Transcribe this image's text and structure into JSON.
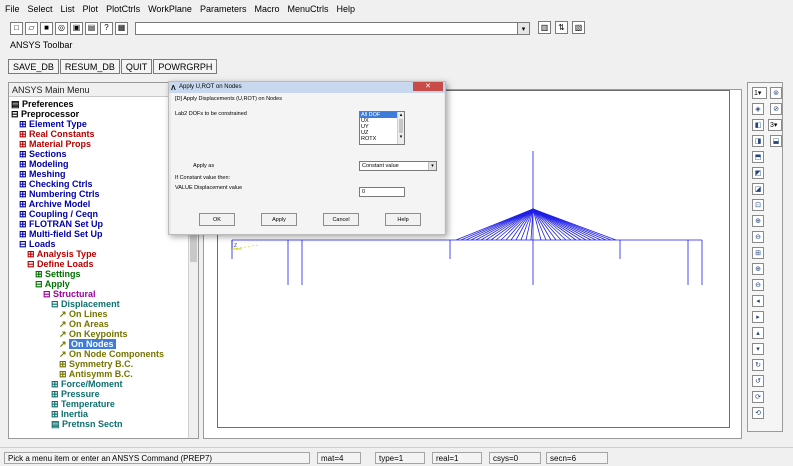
{
  "menubar": [
    "File",
    "Select",
    "List",
    "Plot",
    "PlotCtrls",
    "WorkPlane",
    "Parameters",
    "Macro",
    "MenuCtrls",
    "Help"
  ],
  "toolbar_label": "ANSYS Toolbar",
  "ansys_toolbar": [
    "SAVE_DB",
    "RESUM_DB",
    "QUIT",
    "POWRGRPH"
  ],
  "main_menu": {
    "title": "ANSYS Main Menu",
    "items": [
      {
        "label": "▤ Preferences",
        "color": "c-black",
        "indent": 0
      },
      {
        "label": "⊟ Preprocessor",
        "color": "c-black",
        "indent": 0
      },
      {
        "label": "⊞ Element Type",
        "color": "c-blue",
        "indent": 1
      },
      {
        "label": "⊞ Real Constants",
        "color": "c-red",
        "indent": 1
      },
      {
        "label": "⊞ Material Props",
        "color": "c-red",
        "indent": 1
      },
      {
        "label": "⊞ Sections",
        "color": "c-blue",
        "indent": 1
      },
      {
        "label": "⊞ Modeling",
        "color": "c-blue",
        "indent": 1
      },
      {
        "label": "⊞ Meshing",
        "color": "c-blue",
        "indent": 1
      },
      {
        "label": "⊞ Checking Ctrls",
        "color": "c-blue",
        "indent": 1
      },
      {
        "label": "⊞ Numbering Ctrls",
        "color": "c-blue",
        "indent": 1
      },
      {
        "label": "⊞ Archive Model",
        "color": "c-blue",
        "indent": 1
      },
      {
        "label": "⊞ Coupling / Ceqn",
        "color": "c-blue",
        "indent": 1
      },
      {
        "label": "⊞ FLOTRAN Set Up",
        "color": "c-blue",
        "indent": 1
      },
      {
        "label": "⊞ Multi-field Set Up",
        "color": "c-blue",
        "indent": 1
      },
      {
        "label": "⊟ Loads",
        "color": "c-blue",
        "indent": 1
      },
      {
        "label": "⊞ Analysis Type",
        "color": "c-red",
        "indent": 2
      },
      {
        "label": "⊟ Define Loads",
        "color": "c-red",
        "indent": 2
      },
      {
        "label": "⊞ Settings",
        "color": "c-dgreen",
        "indent": 3
      },
      {
        "label": "⊟ Apply",
        "color": "c-dgreen",
        "indent": 3
      },
      {
        "label": "⊟ Structural",
        "color": "c-purple",
        "indent": 4
      },
      {
        "label": "⊟ Displacement",
        "color": "c-teal",
        "indent": 5
      },
      {
        "label": "↗ On Lines",
        "color": "c-olive",
        "indent": 6
      },
      {
        "label": "↗ On Areas",
        "color": "c-olive",
        "indent": 6
      },
      {
        "label": "↗ On Keypoints",
        "color": "c-olive",
        "indent": 6
      },
      {
        "label": "On Nodes",
        "color": "c-olive",
        "indent": 6,
        "selected": true
      },
      {
        "label": "↗ On Node Components",
        "color": "c-olive",
        "indent": 6
      },
      {
        "label": "⊞ Symmetry B.C.",
        "color": "c-olive",
        "indent": 6
      },
      {
        "label": "⊞ Antisymm B.C.",
        "color": "c-olive",
        "indent": 6
      },
      {
        "label": "⊞ Force/Moment",
        "color": "c-teal",
        "indent": 5
      },
      {
        "label": "⊞ Pressure",
        "color": "c-teal",
        "indent": 5
      },
      {
        "label": "⊞ Temperature",
        "color": "c-teal",
        "indent": 5
      },
      {
        "label": "⊞ Inertia",
        "color": "c-teal",
        "indent": 5
      },
      {
        "label": "▤ Pretnsn Sectn",
        "color": "c-teal",
        "indent": 5
      }
    ]
  },
  "dialog": {
    "title": "Apply U,ROT on Nodes",
    "heading": "[D]  Apply Displacements (U,ROT) on Nodes",
    "lab2_label": "Lab2    DOFs to be constrained",
    "dof_options": [
      "All DOF",
      "UX",
      "UY",
      "UZ",
      "ROTX"
    ],
    "dof_selected": "All DOF",
    "apply_as_label": "Apply as",
    "apply_as_value": "Constant value",
    "if_constant_label": "If Constant value then:",
    "value_label": "VALUE  Displacement value",
    "value": "0",
    "buttons": [
      "OK",
      "Apply",
      "Cancel",
      "Help"
    ]
  },
  "status": {
    "prompt": "Pick a menu item or enter an ANSYS Command (PREP7)",
    "mat": "mat=4",
    "type": "type=1",
    "real": "real=1",
    "csys": "csys=0",
    "secn": "secn=6"
  },
  "right_strip": {
    "window_num": "1",
    "zoom_num": "3"
  },
  "colors": {
    "model": "#1e1ee6",
    "selection": "#3d7cd8"
  }
}
